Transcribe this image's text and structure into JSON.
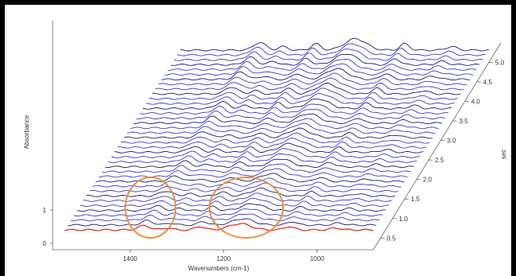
{
  "chart_data": {
    "type": "waterfall-3d-line",
    "xlabel": "Wavenumbers (cm-1)",
    "ylabel": "Absorbance",
    "zlabel": "sec",
    "x_ticks": [
      1400,
      1200,
      1000
    ],
    "x_range": [
      1540,
      880
    ],
    "y_ticks": [
      0,
      1
    ],
    "z_ticks": [
      0.5,
      1.0,
      1.5,
      2.0,
      2.5,
      3.0,
      3.5,
      4.0,
      4.5,
      5.0
    ],
    "z_tick_labels": [
      "0.5",
      "1.0",
      "1.5",
      "2.0",
      "2.5",
      "3.0",
      "3.5",
      "4.0",
      "4.5",
      "5.0"
    ],
    "z_range": [
      0.2,
      5.5
    ],
    "n_traces": 38,
    "peaks_cm1": [
      {
        "center": 1370,
        "height": 0.55,
        "width": 18
      },
      {
        "center": 1320,
        "height": 0.25,
        "width": 14
      },
      {
        "center": 1250,
        "height": 0.45,
        "width": 14
      },
      {
        "center": 1165,
        "height": 0.8,
        "width": 32
      },
      {
        "center": 1060,
        "height": 0.45,
        "width": 14
      },
      {
        "center": 960,
        "height": 0.25,
        "width": 16
      }
    ],
    "highlight_regions_cm1": [
      [
        1410,
        1330
      ],
      [
        1230,
        1100
      ]
    ],
    "colors": {
      "first_trace": "#e0201a",
      "trace_blue": "#3a3ad4",
      "trace_dark": "#1a1a6e",
      "highlight": "#e8903a",
      "axis": "#666666"
    }
  }
}
